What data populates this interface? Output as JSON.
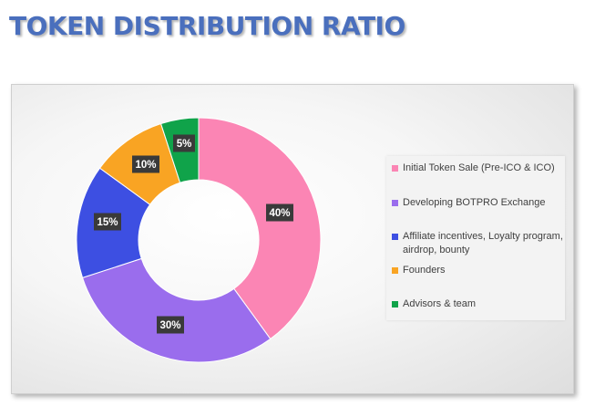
{
  "page": {
    "title": "TOKEN DISTRIBUTION RATIO"
  },
  "chart_data": {
    "type": "pie",
    "donut": true,
    "title": "",
    "categories": [
      "Initial Token Sale (Pre-ICO & ICO)",
      "Developing BOTPRO Exchange",
      "Affiliate incentives, Loyalty program, airdrop, bounty",
      "Founders",
      "Advisors & team"
    ],
    "values": [
      40,
      30,
      15,
      10,
      5
    ],
    "data_labels": [
      "40%",
      "30%",
      "15%",
      "10%",
      "5%"
    ],
    "colors": [
      "#fb85b4",
      "#9a6ded",
      "#3d4fe2",
      "#f9a423",
      "#10a34a"
    ],
    "legend": "right"
  }
}
